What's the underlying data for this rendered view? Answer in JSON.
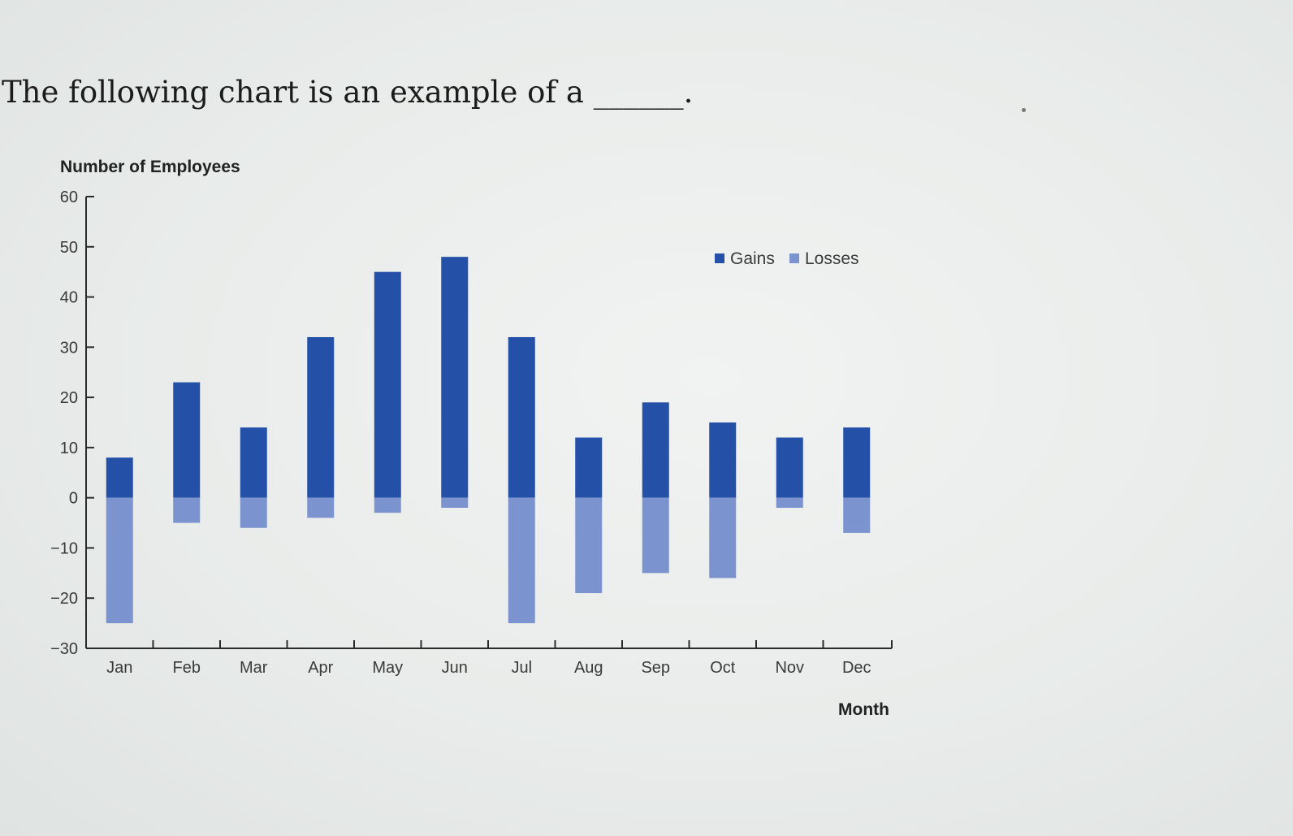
{
  "question": {
    "text": "The following chart is an example of a ______."
  },
  "chart_data": {
    "type": "bar",
    "stacked": true,
    "title": "",
    "xlabel": "Month",
    "ylabel": "Number of Employees",
    "ylim": [
      -30,
      60
    ],
    "yticks": [
      -30,
      -20,
      -10,
      0,
      10,
      20,
      30,
      40,
      50,
      60
    ],
    "grid": false,
    "legend_position": "top-right",
    "categories": [
      "Jan",
      "Feb",
      "Mar",
      "Apr",
      "May",
      "Jun",
      "Jul",
      "Aug",
      "Sep",
      "Oct",
      "Nov",
      "Dec"
    ],
    "series": [
      {
        "name": "Gains",
        "color": "#2450a8",
        "values": [
          8,
          23,
          14,
          32,
          45,
          48,
          32,
          12,
          19,
          15,
          12,
          14
        ]
      },
      {
        "name": "Losses",
        "color": "#7b93cf",
        "values": [
          -25,
          -5,
          -6,
          -4,
          -3,
          -2,
          -25,
          -19,
          -15,
          -16,
          -2,
          -7
        ]
      }
    ]
  }
}
